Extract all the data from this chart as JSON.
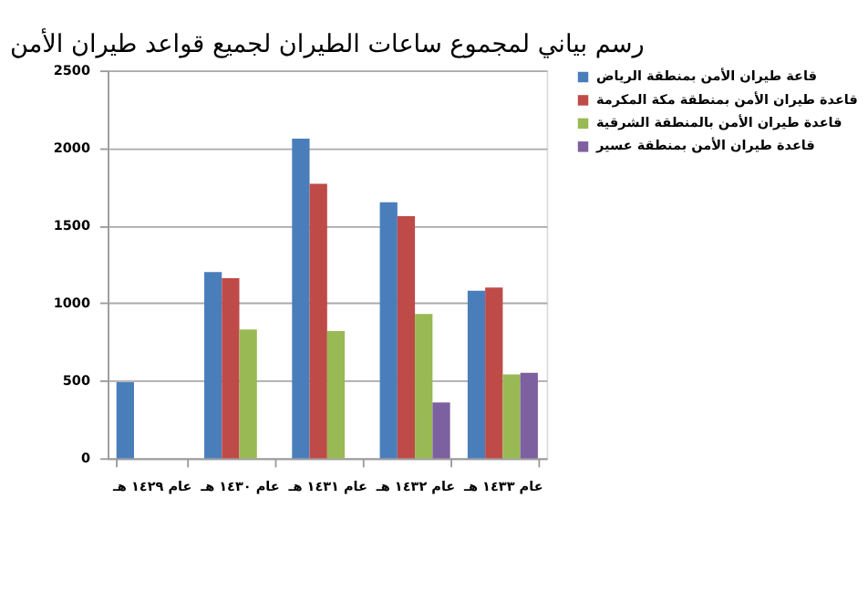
{
  "chart_data": {
    "type": "bar",
    "title": "رسم بياني لمجموع ساعات الطيران لجميع قواعد طيران الأمن",
    "categories": [
      "عام ١٤٢٩ هـ",
      "عام ١٤٣٠ هـ",
      "عام ١٤٣١ هـ",
      "عام ١٤٣٢ هـ",
      "عام ١٤٣٣ هـ"
    ],
    "series": [
      {
        "name": "قاعة طيران الأمن بمنطقة الرياض",
        "color": "#4a7ebb",
        "values": [
          490,
          1200,
          2060,
          1650,
          1080
        ]
      },
      {
        "name": "قاعدة طيران الأمن بمنطقة مكة المكرمة",
        "color": "#be4b48",
        "values": [
          null,
          1160,
          1770,
          1560,
          1100
        ]
      },
      {
        "name": "قاعدة طيران الأمن بالمنطقة الشرقية",
        "color": "#98b954",
        "values": [
          null,
          830,
          820,
          930,
          540
        ]
      },
      {
        "name": "قاعدة طيران الأمن بمنطقة عسير",
        "color": "#7d60a0",
        "values": [
          null,
          null,
          null,
          360,
          550
        ]
      }
    ],
    "ylim": [
      0,
      2500
    ],
    "yticks": [
      0,
      500,
      1000,
      1500,
      2000,
      2500
    ],
    "grid": "y",
    "legend": "right"
  }
}
